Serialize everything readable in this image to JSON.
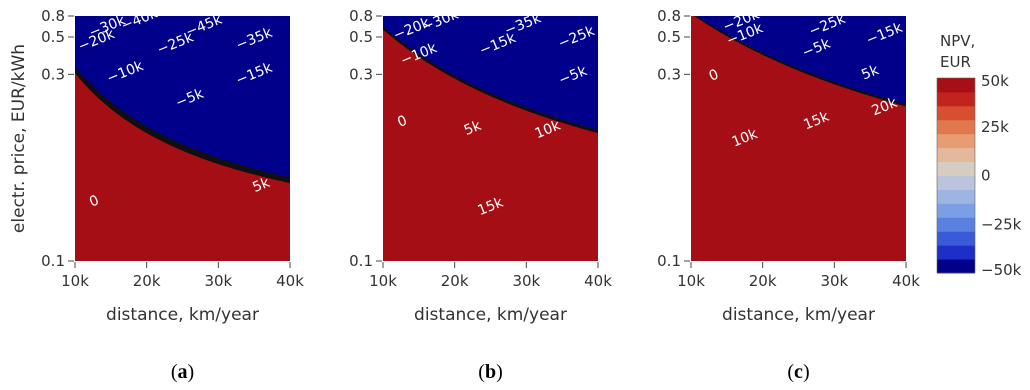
{
  "chart_data": [
    {
      "type": "heatmap",
      "panel_label": "a",
      "xlabel": "distance, km/year",
      "ylabel": "electr. price, EUR/kWh",
      "x_ticks": [
        "10k",
        "20k",
        "30k",
        "40k"
      ],
      "y_ticks": [
        "0.1",
        "0.3",
        "0.5",
        "0.8"
      ],
      "xlim": [
        10000,
        40000
      ],
      "ylim": [
        0.1,
        0.8
      ],
      "y_scale": "reciprocal",
      "contour_labels": [
        {
          "text": "−40k",
          "value": -40000,
          "x": 19000,
          "y": 0.72
        },
        {
          "text": "−45k",
          "value": -45000,
          "x": 28000,
          "y": 0.62
        },
        {
          "text": "−30k",
          "value": -30000,
          "x": 14500,
          "y": 0.61
        },
        {
          "text": "−20k",
          "value": -20000,
          "x": 13000,
          "y": 0.47
        },
        {
          "text": "−25k",
          "value": -25000,
          "x": 24000,
          "y": 0.445
        },
        {
          "text": "−35k",
          "value": -35000,
          "x": 35000,
          "y": 0.48
        },
        {
          "text": "−10k",
          "value": -10000,
          "x": 17000,
          "y": 0.306
        },
        {
          "text": "−15k",
          "value": -15000,
          "x": 35000,
          "y": 0.3
        },
        {
          "text": "−5k",
          "value": -5000,
          "x": 26000,
          "y": 0.238
        },
        {
          "text": "0",
          "value": 0,
          "x": 12700,
          "y": 0.127
        },
        {
          "text": "5k",
          "value": 5000,
          "x": 36000,
          "y": 0.137
        }
      ]
    },
    {
      "type": "heatmap",
      "panel_label": "b",
      "xlabel": "distance, km/year",
      "x_ticks": [
        "10k",
        "20k",
        "30k",
        "40k"
      ],
      "y_ticks": [
        "0.1",
        "0.3",
        "0.5",
        "0.8"
      ],
      "xlim": [
        10000,
        40000
      ],
      "ylim": [
        0.1,
        0.8
      ],
      "y_scale": "reciprocal",
      "contour_labels": [
        {
          "text": "−30k",
          "value": -30000,
          "x": 18000,
          "y": 0.7
        },
        {
          "text": "−35k",
          "value": -35000,
          "x": 29500,
          "y": 0.64
        },
        {
          "text": "−20k",
          "value": -20000,
          "x": 14000,
          "y": 0.58
        },
        {
          "text": "−25k",
          "value": -25000,
          "x": 37000,
          "y": 0.495
        },
        {
          "text": "−15k",
          "value": -15000,
          "x": 26000,
          "y": 0.44
        },
        {
          "text": "−10k",
          "value": -10000,
          "x": 15000,
          "y": 0.38
        },
        {
          "text": "−5k",
          "value": -5000,
          "x": 36500,
          "y": 0.295
        },
        {
          "text": "0",
          "value": 0,
          "x": 12700,
          "y": 0.199
        },
        {
          "text": "5k",
          "value": 5000,
          "x": 22500,
          "y": 0.19
        },
        {
          "text": "10k",
          "value": 10000,
          "x": 33000,
          "y": 0.188
        },
        {
          "text": "15k",
          "value": 15000,
          "x": 25000,
          "y": 0.124
        }
      ]
    },
    {
      "type": "heatmap",
      "panel_label": "c",
      "xlabel": "distance, km/year",
      "x_ticks": [
        "10k",
        "20k",
        "30k",
        "40k"
      ],
      "y_ticks": [
        "0.1",
        "0.3",
        "0.5",
        "0.8"
      ],
      "xlim": [
        10000,
        40000
      ],
      "ylim": [
        0.1,
        0.8
      ],
      "y_scale": "reciprocal",
      "contour_labels": [
        {
          "text": "−20k",
          "value": -20000,
          "x": 17000,
          "y": 0.7
        },
        {
          "text": "−25k",
          "value": -25000,
          "x": 29000,
          "y": 0.63
        },
        {
          "text": "−15k",
          "value": -15000,
          "x": 37000,
          "y": 0.525
        },
        {
          "text": "−10k",
          "value": -10000,
          "x": 17500,
          "y": 0.52
        },
        {
          "text": "−5k",
          "value": -5000,
          "x": 27500,
          "y": 0.415
        },
        {
          "text": "0",
          "value": 0,
          "x": 13200,
          "y": 0.296
        },
        {
          "text": "5k",
          "value": 5000,
          "x": 35000,
          "y": 0.305
        },
        {
          "text": "10k",
          "value": 10000,
          "x": 17500,
          "y": 0.178
        },
        {
          "text": "15k",
          "value": 15000,
          "x": 27500,
          "y": 0.2
        },
        {
          "text": "20k",
          "value": 20000,
          "x": 37000,
          "y": 0.222
        }
      ]
    }
  ],
  "colorbar": {
    "title_lines": [
      "NPV,",
      "EUR"
    ],
    "ticks": [
      {
        "label": "50k",
        "value": 50000
      },
      {
        "label": "25k",
        "value": 25000
      },
      {
        "label": "0",
        "value": 0
      },
      {
        "label": "−25k",
        "value": -25000
      },
      {
        "label": "−50k",
        "value": -50000
      }
    ],
    "range": [
      -50000,
      50000
    ],
    "colors": [
      "#00008b",
      "#1e2fc8",
      "#3a5ad8",
      "#5a80e0",
      "#7c9ee4",
      "#9eb4e2",
      "#bbc4dc",
      "#d6cdc2",
      "#e4b89a",
      "#e89c72",
      "#e2794e",
      "#d6502f",
      "#c2241d",
      "#a50f15"
    ]
  },
  "panel_labels": [
    "a",
    "b",
    "c"
  ]
}
